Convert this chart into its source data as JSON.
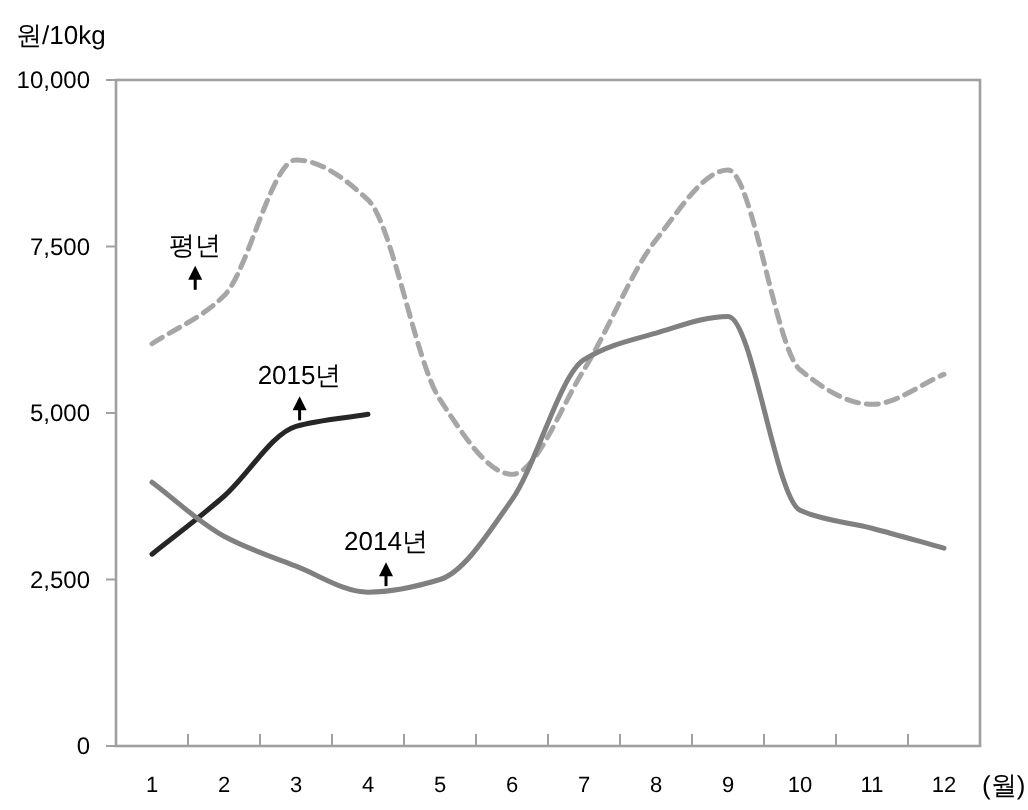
{
  "chart_data": {
    "type": "line",
    "ylabel": "원/10kg",
    "xlabel": "(월)",
    "categories": [
      "1",
      "2",
      "3",
      "4",
      "5",
      "6",
      "7",
      "8",
      "9",
      "10",
      "11",
      "12"
    ],
    "ylim": [
      0,
      10000
    ],
    "yticks": [
      0,
      {
        "value": 2500,
        "label": "2,500"
      },
      {
        "value": 5000,
        "label": "5,000"
      },
      {
        "value": 7500,
        "label": "7,500"
      },
      {
        "value": 10000,
        "label": "10,000"
      }
    ],
    "grid": false,
    "legend": false,
    "marker": "none",
    "series": [
      {
        "name": "평년",
        "color": "#a6a6a6",
        "line_style": "dashed",
        "values": [
          6040,
          6760,
          8800,
          8200,
          5200,
          4080,
          5650,
          7600,
          8650,
          5650,
          5130,
          5580
        ]
      },
      {
        "name": "2015년",
        "color": "#262626",
        "line_style": "solid",
        "values": [
          2880,
          3750,
          4800,
          4980,
          null,
          null,
          null,
          null,
          null,
          null,
          null,
          null
        ]
      },
      {
        "name": "2014년",
        "color": "#808080",
        "line_style": "solid",
        "values": [
          3960,
          3150,
          2700,
          2310,
          2500,
          3700,
          5800,
          6200,
          6450,
          3540,
          3270,
          2970
        ]
      }
    ]
  }
}
